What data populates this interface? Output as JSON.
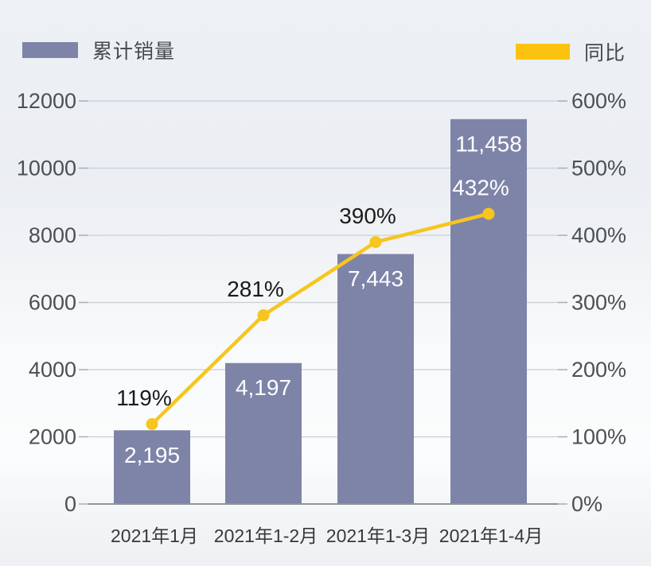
{
  "legend": {
    "bar": {
      "label": "累计销量",
      "color": "#7e84a8"
    },
    "line": {
      "label": "同比",
      "color": "#fbc30d"
    }
  },
  "chart_data": {
    "type": "bar+line combo",
    "categories": [
      "2021年1月",
      "2021年1-2月",
      "2021年1-3月",
      "2021年1-4月"
    ],
    "series": [
      {
        "name": "累计销量",
        "type": "bar",
        "axis": "left",
        "color": "#7e84a8",
        "values": [
          2195,
          4197,
          7443,
          11458
        ],
        "value_labels": [
          "2,195",
          "4,197",
          "7,443",
          "11,458"
        ],
        "value_label_color": "#ffffff"
      },
      {
        "name": "同比",
        "type": "line",
        "axis": "right",
        "color": "#f7c51f",
        "values": [
          119,
          281,
          390,
          432
        ],
        "value_labels": [
          "119%",
          "281%",
          "390%",
          "432%"
        ],
        "value_label_colors": [
          "#1b1b1b",
          "#1b1b1b",
          "#1b1b1b",
          "#ffffff"
        ]
      }
    ],
    "left_axis": {
      "range": [
        0,
        12000
      ],
      "ticks": [
        0,
        2000,
        4000,
        6000,
        8000,
        10000,
        12000
      ],
      "tick_labels": [
        "0",
        "2000",
        "4000",
        "6000",
        "8000",
        "10000",
        "12000"
      ]
    },
    "right_axis": {
      "range": [
        0,
        600
      ],
      "ticks": [
        0,
        100,
        200,
        300,
        400,
        500,
        600
      ],
      "tick_labels": [
        "0%",
        "100%",
        "200%",
        "300%",
        "400%",
        "500%",
        "600%"
      ]
    },
    "grid": true,
    "legend_position": "top"
  },
  "colors": {
    "grid": "#c9ced6",
    "baseline": "#8f949c",
    "tick": "#a9aeb5",
    "axis_text": "#4c5055",
    "x_axis_text": "#36393d"
  }
}
